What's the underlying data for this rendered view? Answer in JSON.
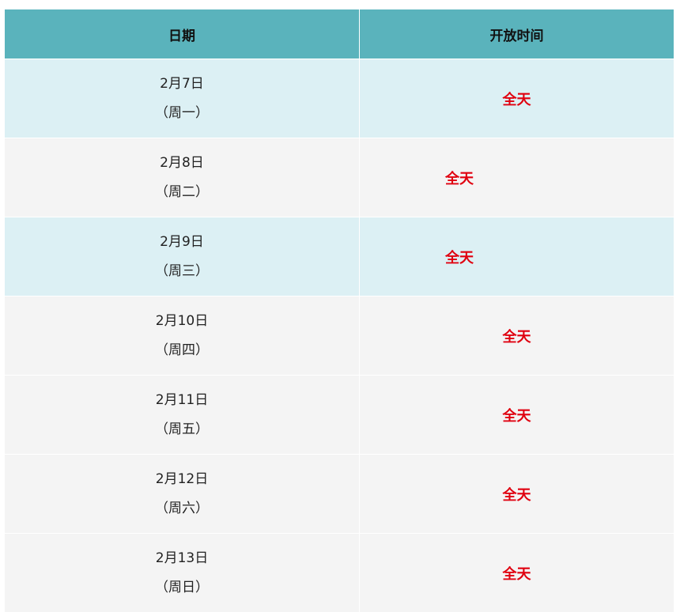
{
  "header": {
    "date": "日期",
    "hours": "开放时间"
  },
  "rows": [
    {
      "date": "2月7日",
      "weekday": "（周一）",
      "hours": "全天",
      "bg": "#dcf0f4"
    },
    {
      "date": "2月8日",
      "weekday": "（周二）",
      "hours": "全天",
      "bg": "#f4f4f4"
    },
    {
      "date": "2月9日",
      "weekday": "（周三）",
      "hours": "全天",
      "bg": "#dcf0f4"
    },
    {
      "date": "2月10日",
      "weekday": "（周四）",
      "hours": "全天",
      "bg": "#f4f4f4"
    },
    {
      "date": "2月11日",
      "weekday": "（周五）",
      "hours": "全天",
      "bg": "#f4f4f4"
    },
    {
      "date": "2月12日",
      "weekday": "（周六）",
      "hours": "全天",
      "bg": "#f4f4f4"
    },
    {
      "date": "2月13日",
      "weekday": "（周日）",
      "hours": "全天",
      "bg": "#f4f4f4"
    }
  ],
  "colors": {
    "header_bg": "#5ab3bc",
    "highlight": "#e0000f"
  }
}
